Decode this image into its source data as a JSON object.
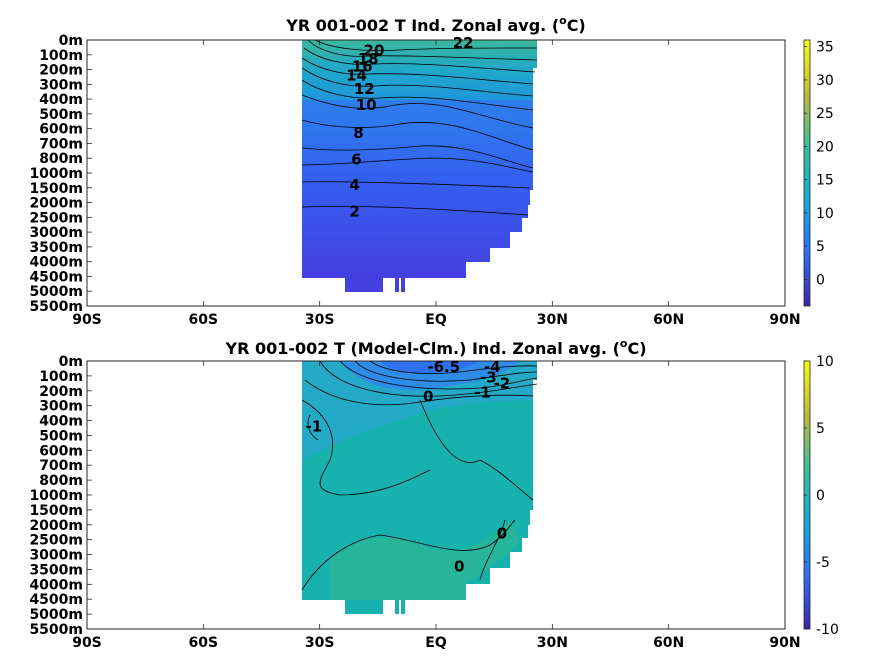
{
  "chart_data": [
    {
      "type": "heatmap",
      "title": "YR 001-002 T Ind. Zonal avg. (",
      "title_sup": "o",
      "title_end": "C)",
      "x_tick_labels": [
        "90S",
        "60S",
        "30S",
        "EQ",
        "30N",
        "60N",
        "90N"
      ],
      "x_tick_values": [
        -90,
        -60,
        -30,
        0,
        30,
        60,
        90
      ],
      "y_tick_labels": [
        "0m",
        "100m",
        "200m",
        "300m",
        "400m",
        "500m",
        "600m",
        "700m",
        "800m",
        "1000m",
        "1500m",
        "2000m",
        "2500m",
        "3000m",
        "3500m",
        "4000m",
        "4500m",
        "5000m",
        "5500m"
      ],
      "colorbar": {
        "ticks": [
          0,
          5,
          10,
          15,
          20,
          25,
          30,
          35
        ],
        "range": [
          -4,
          36
        ],
        "colormap": "parula"
      },
      "data_extent": {
        "lat_min": -35,
        "lat_max": 26,
        "depth_max": "5000m"
      },
      "contour_labels": [
        {
          "text": "22",
          "lat": 7,
          "depth_index": 0.2
        },
        {
          "text": "20",
          "lat": -16,
          "depth_index": 0.7
        },
        {
          "text": "18",
          "lat": -17.5,
          "depth_index": 1.3
        },
        {
          "text": "16",
          "lat": -19,
          "depth_index": 1.8
        },
        {
          "text": "14",
          "lat": -20.5,
          "depth_index": 2.4
        },
        {
          "text": "12",
          "lat": -18.5,
          "depth_index": 3.3
        },
        {
          "text": "10",
          "lat": -18,
          "depth_index": 4.4
        },
        {
          "text": "8",
          "lat": -20,
          "depth_index": 6.3
        },
        {
          "text": "6",
          "lat": -20.5,
          "depth_index": 8.1
        },
        {
          "text": "4",
          "lat": -21,
          "depth_index": 9.8
        },
        {
          "text": "2",
          "lat": -21,
          "depth_index": 11.6
        }
      ]
    },
    {
      "type": "heatmap",
      "title": "YR 001-002 T (Model-Clm.) Ind. Zonal avg. (",
      "title_sup": "o",
      "title_end": "C)",
      "x_tick_labels": [
        "90S",
        "60S",
        "30S",
        "EQ",
        "30N",
        "60N",
        "90N"
      ],
      "x_tick_values": [
        -90,
        -60,
        -30,
        0,
        30,
        60,
        90
      ],
      "y_tick_labels": [
        "0m",
        "100m",
        "200m",
        "300m",
        "400m",
        "500m",
        "600m",
        "700m",
        "800m",
        "1000m",
        "1500m",
        "2000m",
        "2500m",
        "3000m",
        "3500m",
        "4000m",
        "4500m",
        "5000m",
        "5500m"
      ],
      "colorbar": {
        "ticks": [
          10,
          5,
          0,
          -5,
          -10
        ],
        "range": [
          -10,
          10
        ],
        "colormap": "parula"
      },
      "data_extent": {
        "lat_min": -35,
        "lat_max": 26,
        "depth_max": "5000m"
      },
      "contour_labels": [
        {
          "text": "-6.5",
          "lat": 2,
          "depth_index": 0.4
        },
        {
          "text": "-4",
          "lat": 14.5,
          "depth_index": 0.4
        },
        {
          "text": "-3",
          "lat": 13.5,
          "depth_index": 1.1
        },
        {
          "text": "-2",
          "lat": 17,
          "depth_index": 1.5
        },
        {
          "text": "-1",
          "lat": 12,
          "depth_index": 2.1
        },
        {
          "text": "0",
          "lat": -2,
          "depth_index": 2.4
        },
        {
          "text": "-1",
          "lat": -31.5,
          "depth_index": 4.4
        },
        {
          "text": "0",
          "lat": 17,
          "depth_index": 11.6
        },
        {
          "text": "0",
          "lat": 6,
          "depth_index": 13.8
        }
      ]
    }
  ]
}
